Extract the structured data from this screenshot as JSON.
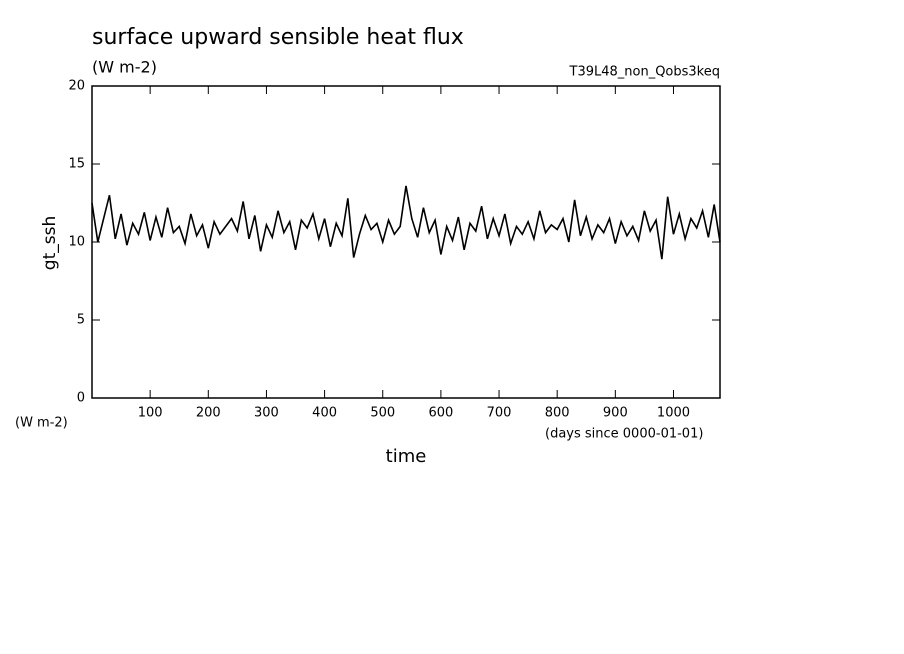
{
  "chart_data": {
    "type": "line",
    "title": "surface upward sensible heat flux",
    "subtitle": "(W m-2)",
    "annotation": "T39L48_non_Qobs3keq",
    "ylabel": "gt_ssh",
    "yunits": "(W m-2)",
    "xlabel": "time",
    "xunits": "(days since 0000-01-01)",
    "xlim": [
      0,
      1080
    ],
    "ylim": [
      0,
      20
    ],
    "xticks": [
      100,
      200,
      300,
      400,
      500,
      600,
      700,
      800,
      900,
      1000
    ],
    "yticks": [
      0,
      5,
      10,
      15,
      20
    ],
    "x": [
      0,
      10,
      20,
      30,
      40,
      50,
      60,
      70,
      80,
      90,
      100,
      110,
      120,
      130,
      140,
      150,
      160,
      170,
      180,
      190,
      200,
      210,
      220,
      230,
      240,
      250,
      260,
      270,
      280,
      290,
      300,
      310,
      320,
      330,
      340,
      350,
      360,
      370,
      380,
      390,
      400,
      410,
      420,
      430,
      440,
      450,
      460,
      470,
      480,
      490,
      500,
      510,
      520,
      530,
      540,
      550,
      560,
      570,
      580,
      590,
      600,
      610,
      620,
      630,
      640,
      650,
      660,
      670,
      680,
      690,
      700,
      710,
      720,
      730,
      740,
      750,
      760,
      770,
      780,
      790,
      800,
      810,
      820,
      830,
      840,
      850,
      860,
      870,
      880,
      890,
      900,
      910,
      920,
      930,
      940,
      950,
      960,
      970,
      980,
      990,
      1000,
      1010,
      1020,
      1030,
      1040,
      1050,
      1060,
      1070,
      1080
    ],
    "series": [
      {
        "color": "#000000",
        "values": [
          12.5,
          10.0,
          11.5,
          13.0,
          10.2,
          11.8,
          9.8,
          11.2,
          10.5,
          11.9,
          10.1,
          11.6,
          10.3,
          12.2,
          10.6,
          11.0,
          9.9,
          11.8,
          10.4,
          11.1,
          9.6,
          11.3,
          10.5,
          11.0,
          11.5,
          10.7,
          12.6,
          10.2,
          11.7,
          9.4,
          11.1,
          10.3,
          12.0,
          10.6,
          11.3,
          9.5,
          11.4,
          10.9,
          11.8,
          10.2,
          11.5,
          9.7,
          11.2,
          10.4,
          12.8,
          9.0,
          10.5,
          11.7,
          10.8,
          11.2,
          10.0,
          11.4,
          10.5,
          11.0,
          13.6,
          11.5,
          10.3,
          12.2,
          10.6,
          11.4,
          9.2,
          11.0,
          10.1,
          11.6,
          9.5,
          11.2,
          10.7,
          12.3,
          10.2,
          11.5,
          10.4,
          11.8,
          9.9,
          11.0,
          10.5,
          11.3,
          10.2,
          12.0,
          10.6,
          11.1,
          10.8,
          11.5,
          10.0,
          12.7,
          10.4,
          11.6,
          10.2,
          11.1,
          10.6,
          11.5,
          9.9,
          11.3,
          10.4,
          11.0,
          10.1,
          12.0,
          10.7,
          11.4,
          8.9,
          12.9,
          10.5,
          11.8,
          10.2,
          11.5,
          10.9,
          12.0,
          10.3,
          12.4,
          10.0
        ]
      }
    ]
  }
}
